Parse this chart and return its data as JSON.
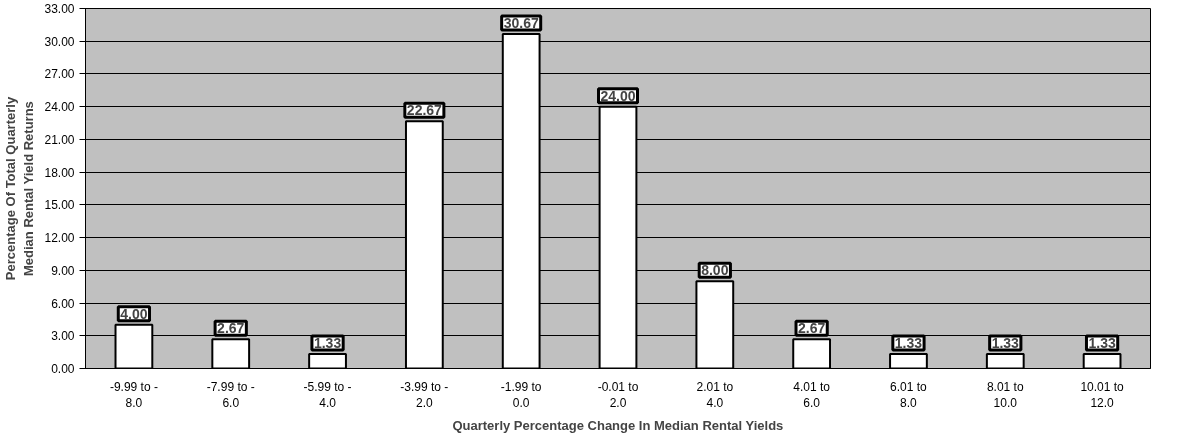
{
  "chart_data": {
    "type": "bar",
    "xlabel": "Quarterly Percentage Change In Median Rental Yields",
    "ylabel": "Percentage Of Total Quarterly\nMedian Rental Yield Returns",
    "categories": [
      "-9.99 to -\n8.0",
      "-7.99 to -\n6.0",
      "-5.99 to -\n4.0",
      "-3.99 to -\n2.0",
      "-1.99 to\n0.0",
      "-0.01 to\n2.0",
      "2.01 to\n4.0",
      "4.01 to\n6.0",
      "6.01 to\n8.0",
      "8.01 to\n10.0",
      "10.01 to\n12.0"
    ],
    "values": [
      4.0,
      2.67,
      1.33,
      22.67,
      30.67,
      24.0,
      8.0,
      2.67,
      1.33,
      1.33,
      1.33
    ],
    "value_labels": [
      "4.00",
      "2.67",
      "1.33",
      "22.67",
      "30.67",
      "24.00",
      "8.00",
      "2.67",
      "1.33",
      "1.33",
      "1.33"
    ],
    "color": "#ffffff",
    "ylim": [
      0,
      33
    ],
    "yticks": [
      {
        "value": 0,
        "label": "0.00"
      },
      {
        "value": 3,
        "label": "3.00"
      },
      {
        "value": 6,
        "label": "6.00"
      },
      {
        "value": 9,
        "label": "9.00"
      },
      {
        "value": 12,
        "label": "12.00"
      },
      {
        "value": 15,
        "label": "15.00"
      },
      {
        "value": 18,
        "label": "18.00"
      },
      {
        "value": 21,
        "label": "21.00"
      },
      {
        "value": 24,
        "label": "24.00"
      },
      {
        "value": 27,
        "label": "27.00"
      },
      {
        "value": 30,
        "label": "30.00"
      },
      {
        "value": 33,
        "label": "33.00"
      }
    ],
    "grid": "y"
  }
}
